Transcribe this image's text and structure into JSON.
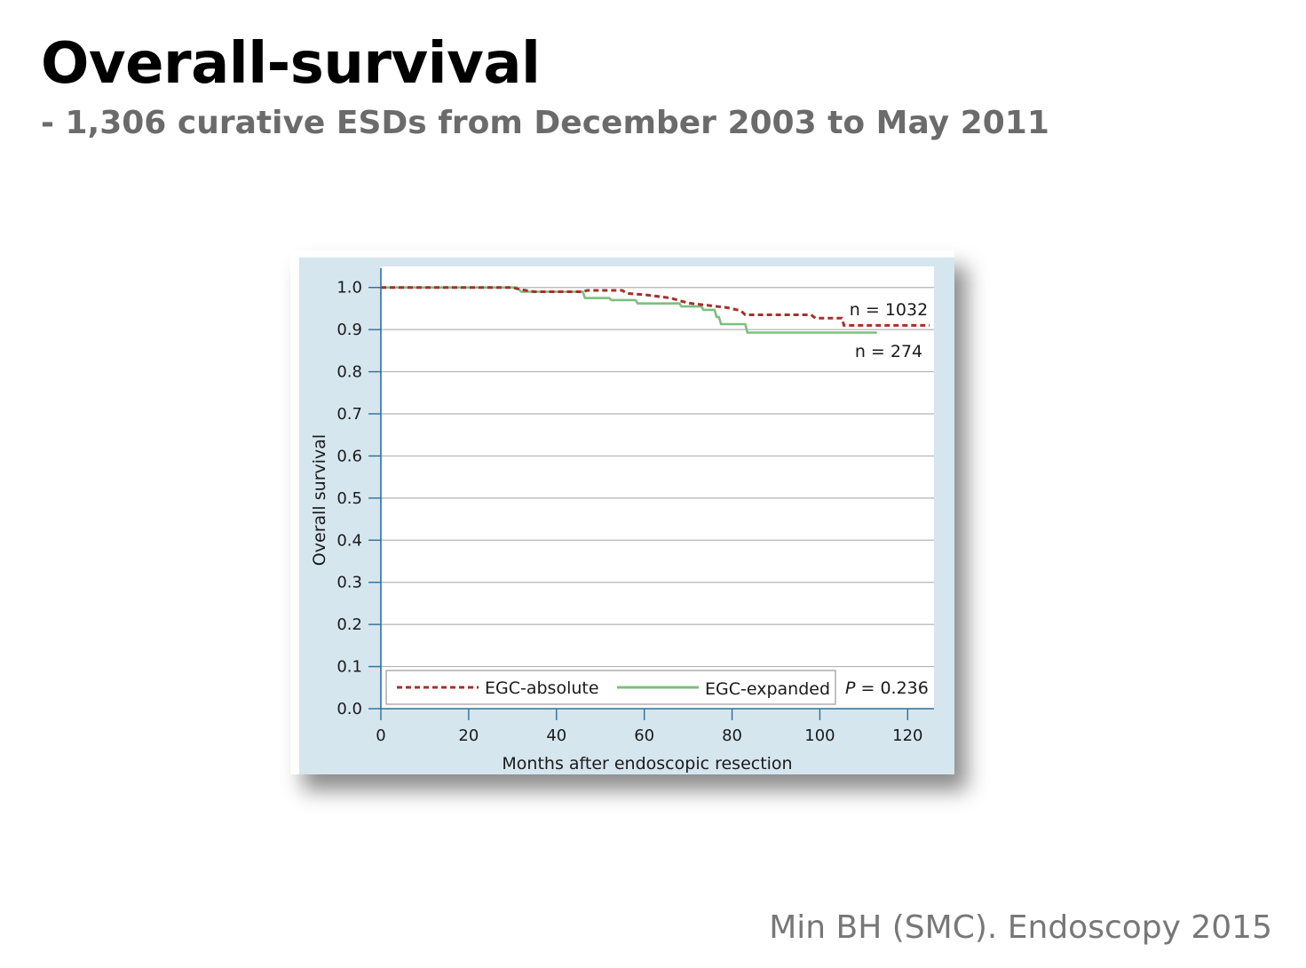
{
  "slide": {
    "title": "Overall-survival",
    "subtitle": "- 1,306 curative ESDs from December 2003 to May 2011",
    "citation": "Min BH (SMC). Endoscopy 2015"
  },
  "colors": {
    "panel_background": "#d6e6ef",
    "plot_background": "#ffffff",
    "axis": "#2f6f96",
    "gridline": "#b4b4b4",
    "absolute_series": "#a6302a",
    "expanded_series": "#7dbf7d"
  },
  "chart_data": {
    "type": "line",
    "title": "",
    "xlabel": "Months after endoscopic resection",
    "ylabel": "Overall survival",
    "xlim": [
      0,
      126
    ],
    "ylim": [
      0,
      1.05
    ],
    "xticks": [
      "0",
      "20",
      "40",
      "60",
      "80",
      "100",
      "120"
    ],
    "yticks": [
      "0.0",
      "0.1",
      "0.2",
      "0.3",
      "0.4",
      "0.5",
      "0.6",
      "0.7",
      "0.8",
      "0.9",
      "1.0"
    ],
    "grid": "horizontal",
    "legend_position": "bottom",
    "series": [
      {
        "name": "EGC-absolute",
        "style": "dashed",
        "color": "#a6302a",
        "n_label": "n = 1032",
        "points": [
          [
            0,
            1.0
          ],
          [
            30,
            1.0
          ],
          [
            31,
            0.997
          ],
          [
            33,
            0.993
          ],
          [
            35,
            0.99
          ],
          [
            46,
            0.99
          ],
          [
            47,
            0.993
          ],
          [
            55,
            0.993
          ],
          [
            56,
            0.986
          ],
          [
            60,
            0.983
          ],
          [
            66,
            0.975
          ],
          [
            70,
            0.963
          ],
          [
            75,
            0.957
          ],
          [
            79,
            0.952
          ],
          [
            82,
            0.945
          ],
          [
            83,
            0.935
          ],
          [
            98,
            0.935
          ],
          [
            99,
            0.927
          ],
          [
            105,
            0.927
          ],
          [
            105.5,
            0.91
          ],
          [
            125,
            0.91
          ]
        ]
      },
      {
        "name": "EGC-expanded",
        "style": "solid",
        "color": "#7dbf7d",
        "n_label": "n = 274",
        "points": [
          [
            0,
            1.0
          ],
          [
            31,
            1.0
          ],
          [
            32,
            0.99
          ],
          [
            46,
            0.99
          ],
          [
            46.5,
            0.975
          ],
          [
            52,
            0.975
          ],
          [
            52.5,
            0.97
          ],
          [
            58,
            0.97
          ],
          [
            58.5,
            0.962
          ],
          [
            68,
            0.962
          ],
          [
            68.5,
            0.955
          ],
          [
            73,
            0.955
          ],
          [
            73.5,
            0.947
          ],
          [
            76,
            0.947
          ],
          [
            76.5,
            0.93
          ],
          [
            77,
            0.93
          ],
          [
            77.5,
            0.913
          ],
          [
            83,
            0.913
          ],
          [
            83.5,
            0.893
          ],
          [
            113,
            0.893
          ]
        ]
      }
    ],
    "legend": [
      {
        "label": "EGC-absolute",
        "style": "dashed"
      },
      {
        "label": "EGC-expanded",
        "style": "solid"
      }
    ],
    "annotations": {
      "p_label": "P",
      "p_value": " = 0.236"
    }
  }
}
